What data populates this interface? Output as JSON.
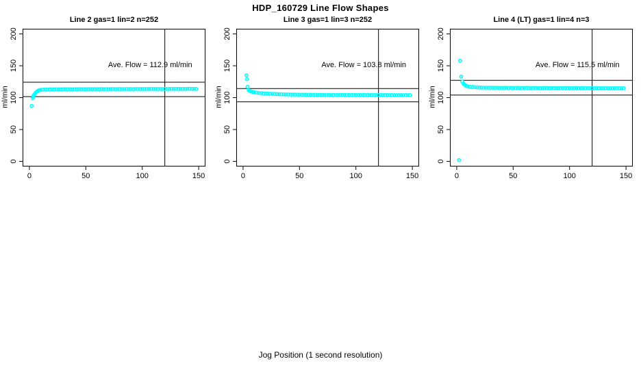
{
  "title": "HDP_160729  Line Flow Shapes",
  "xlabel": "Jog Position (1 second resolution)",
  "colors": {
    "point": "#00FFFF",
    "axis": "#000000",
    "background": "#ffffff"
  },
  "chart_data": [
    {
      "type": "scatter",
      "title": "Line 2 gas=1 lin=2 n=252",
      "annotation": "Ave. Flow =  112.9  ml/min",
      "ave_flow_ml_min": 112.9,
      "n": 252,
      "ylabel": "ml/min",
      "xlim": [
        -6,
        156
      ],
      "ylim": [
        -8,
        208
      ],
      "x_ticks": [
        0,
        50,
        100,
        150
      ],
      "y_ticks": [
        0,
        50,
        100,
        150,
        200
      ],
      "hlines": [
        124.2,
        101.6
      ],
      "vline": 120,
      "points": [
        [
          2,
          87
        ],
        [
          3,
          99
        ],
        [
          3.5,
          102
        ],
        [
          4,
          104
        ],
        [
          5,
          106.5
        ],
        [
          6,
          108.5
        ],
        [
          7,
          110
        ],
        [
          8,
          111
        ],
        [
          9,
          111.8
        ],
        [
          10,
          112.2
        ],
        [
          12,
          112.5
        ],
        [
          14,
          112.8
        ],
        [
          16,
          113
        ],
        [
          18,
          112.9
        ],
        [
          20,
          113.1
        ],
        [
          22,
          113
        ],
        [
          24,
          113.2
        ],
        [
          26,
          113.1
        ],
        [
          28,
          113
        ],
        [
          30,
          113.2
        ],
        [
          32,
          113.3
        ],
        [
          34,
          113.1
        ],
        [
          36,
          113.2
        ],
        [
          38,
          113
        ],
        [
          40,
          113.3
        ],
        [
          42,
          113.2
        ],
        [
          44,
          113.4
        ],
        [
          46,
          113.2
        ],
        [
          48,
          113.3
        ],
        [
          50,
          113.1
        ],
        [
          52,
          113.3
        ],
        [
          54,
          113.4
        ],
        [
          56,
          113.2
        ],
        [
          58,
          113.3
        ],
        [
          60,
          113.4
        ],
        [
          62,
          113.2
        ],
        [
          64,
          113.5
        ],
        [
          66,
          113.3
        ],
        [
          68,
          113.4
        ],
        [
          70,
          113.2
        ],
        [
          72,
          113.4
        ],
        [
          74,
          113.5
        ],
        [
          76,
          113.3
        ],
        [
          78,
          113.4
        ],
        [
          80,
          113.5
        ],
        [
          82,
          113.3
        ],
        [
          84,
          113.4
        ],
        [
          86,
          113.6
        ],
        [
          88,
          113.4
        ],
        [
          90,
          113.5
        ],
        [
          92,
          113.3
        ],
        [
          94,
          113.5
        ],
        [
          96,
          113.6
        ],
        [
          98,
          113.4
        ],
        [
          100,
          113.5
        ],
        [
          102,
          113.4
        ],
        [
          104,
          113.6
        ],
        [
          106,
          113.5
        ],
        [
          108,
          113.7
        ],
        [
          110,
          113.5
        ],
        [
          112,
          113.6
        ],
        [
          114,
          113.4
        ],
        [
          116,
          113.6
        ],
        [
          118,
          113.5
        ],
        [
          120,
          113.7
        ],
        [
          122,
          113.5
        ],
        [
          124,
          113.6
        ],
        [
          126,
          113.8
        ],
        [
          128,
          113.6
        ],
        [
          130,
          113.7
        ],
        [
          132,
          113.5
        ],
        [
          134,
          113.7
        ],
        [
          136,
          113.8
        ],
        [
          138,
          113.6
        ],
        [
          140,
          113.7
        ],
        [
          142,
          113.9
        ],
        [
          144,
          113.7
        ],
        [
          146,
          113.8
        ],
        [
          148,
          113.6
        ]
      ]
    },
    {
      "type": "scatter",
      "title": "Line 3 gas=1 lin=3 n=252",
      "annotation": "Ave. Flow =  103.8  ml/min",
      "ave_flow_ml_min": 103.8,
      "n": 252,
      "ylabel": "ml/min",
      "xlim": [
        -6,
        156
      ],
      "ylim": [
        -8,
        208
      ],
      "x_ticks": [
        0,
        50,
        100,
        150
      ],
      "y_ticks": [
        0,
        50,
        100,
        150,
        200
      ],
      "hlines": [
        114.2,
        93.4
      ],
      "vline": 120,
      "points": [
        [
          3,
          135
        ],
        [
          3.5,
          129
        ],
        [
          4,
          117
        ],
        [
          5,
          111.5
        ],
        [
          6,
          110.5
        ],
        [
          7,
          109.8
        ],
        [
          8,
          109.2
        ],
        [
          9,
          108.8
        ],
        [
          10,
          108.4
        ],
        [
          12,
          107.8
        ],
        [
          14,
          107.4
        ],
        [
          16,
          107
        ],
        [
          18,
          106.7
        ],
        [
          20,
          106.5
        ],
        [
          22,
          106.3
        ],
        [
          24,
          106.1
        ],
        [
          26,
          105.9
        ],
        [
          28,
          105.7
        ],
        [
          30,
          105.5
        ],
        [
          32,
          105.4
        ],
        [
          34,
          105.2
        ],
        [
          36,
          105.1
        ],
        [
          38,
          105
        ],
        [
          40,
          104.9
        ],
        [
          42,
          104.8
        ],
        [
          44,
          104.8
        ],
        [
          46,
          104.7
        ],
        [
          48,
          104.7
        ],
        [
          50,
          104.6
        ],
        [
          52,
          104.6
        ],
        [
          54,
          104.5
        ],
        [
          56,
          104.5
        ],
        [
          58,
          104.5
        ],
        [
          60,
          104.4
        ],
        [
          62,
          104.4
        ],
        [
          64,
          104.4
        ],
        [
          66,
          104.3
        ],
        [
          68,
          104.4
        ],
        [
          70,
          104.3
        ],
        [
          72,
          104.3
        ],
        [
          74,
          104.3
        ],
        [
          76,
          104.2
        ],
        [
          78,
          104.3
        ],
        [
          80,
          104.2
        ],
        [
          82,
          104.3
        ],
        [
          84,
          104.2
        ],
        [
          86,
          104.2
        ],
        [
          88,
          104.3
        ],
        [
          90,
          104.2
        ],
        [
          92,
          104.2
        ],
        [
          94,
          104.1
        ],
        [
          96,
          104.2
        ],
        [
          98,
          104.1
        ],
        [
          100,
          104.2
        ],
        [
          102,
          104.1
        ],
        [
          104,
          104.1
        ],
        [
          106,
          104.2
        ],
        [
          108,
          104.1
        ],
        [
          110,
          104.1
        ],
        [
          112,
          104
        ],
        [
          114,
          104.1
        ],
        [
          116,
          104
        ],
        [
          118,
          104.1
        ],
        [
          120,
          104
        ],
        [
          122,
          104.1
        ],
        [
          124,
          104
        ],
        [
          126,
          104
        ],
        [
          128,
          104.1
        ],
        [
          130,
          104
        ],
        [
          132,
          104
        ],
        [
          134,
          103.9
        ],
        [
          136,
          104
        ],
        [
          138,
          103.9
        ],
        [
          140,
          104
        ],
        [
          142,
          103.9
        ],
        [
          144,
          104
        ],
        [
          146,
          103.9
        ],
        [
          148,
          104
        ]
      ]
    },
    {
      "type": "scatter",
      "title": "Line 4 (LT) gas=1 lin=4 n=3",
      "annotation": "Ave. Flow =  115.5  ml/min",
      "ave_flow_ml_min": 115.5,
      "n": 3,
      "ylabel": "ml/min",
      "xlim": [
        -6,
        156
      ],
      "ylim": [
        -8,
        208
      ],
      "x_ticks": [
        0,
        50,
        100,
        150
      ],
      "y_ticks": [
        0,
        50,
        100,
        150,
        200
      ],
      "hlines": [
        127.1,
        104.0
      ],
      "vline": 120,
      "points": [
        [
          2,
          2
        ],
        [
          3,
          158
        ],
        [
          4,
          133
        ],
        [
          5,
          125
        ],
        [
          6,
          122
        ],
        [
          7,
          120.5
        ],
        [
          8,
          119
        ],
        [
          9,
          118.2
        ],
        [
          10,
          117.6
        ],
        [
          12,
          117
        ],
        [
          14,
          116.6
        ],
        [
          16,
          116.3
        ],
        [
          18,
          116.1
        ],
        [
          20,
          115.9
        ],
        [
          22,
          115.8
        ],
        [
          24,
          115.7
        ],
        [
          26,
          115.6
        ],
        [
          28,
          115.5
        ],
        [
          30,
          115.5
        ],
        [
          32,
          115.6
        ],
        [
          34,
          115.4
        ],
        [
          36,
          115.5
        ],
        [
          38,
          115.3
        ],
        [
          40,
          115.4
        ],
        [
          42,
          115.3
        ],
        [
          44,
          115.5
        ],
        [
          46,
          115.2
        ],
        [
          48,
          115.4
        ],
        [
          50,
          115.3
        ],
        [
          52,
          115.2
        ],
        [
          54,
          115.4
        ],
        [
          56,
          115.1
        ],
        [
          58,
          115.3
        ],
        [
          60,
          115.2
        ],
        [
          62,
          115.4
        ],
        [
          64,
          115.1
        ],
        [
          66,
          115.2
        ],
        [
          68,
          115.3
        ],
        [
          70,
          115.1
        ],
        [
          72,
          115.2
        ],
        [
          74,
          115
        ],
        [
          76,
          115.2
        ],
        [
          78,
          115.1
        ],
        [
          80,
          115.3
        ],
        [
          82,
          115
        ],
        [
          84,
          115.1
        ],
        [
          86,
          114.9
        ],
        [
          88,
          115.1
        ],
        [
          90,
          115
        ],
        [
          92,
          115.2
        ],
        [
          94,
          114.9
        ],
        [
          96,
          115
        ],
        [
          98,
          115.1
        ],
        [
          100,
          114.8
        ],
        [
          102,
          115
        ],
        [
          104,
          114.9
        ],
        [
          106,
          115.1
        ],
        [
          108,
          114.8
        ],
        [
          110,
          114.9
        ],
        [
          112,
          115
        ],
        [
          114,
          114.8
        ],
        [
          116,
          114.9
        ],
        [
          118,
          114.7
        ],
        [
          120,
          114.9
        ],
        [
          122,
          114.8
        ],
        [
          124,
          115
        ],
        [
          126,
          114.7
        ],
        [
          128,
          114.8
        ],
        [
          130,
          114.9
        ],
        [
          132,
          114.7
        ],
        [
          134,
          114.8
        ],
        [
          136,
          114.6
        ],
        [
          138,
          114.8
        ],
        [
          140,
          114.7
        ],
        [
          142,
          114.9
        ],
        [
          144,
          114.6
        ],
        [
          146,
          114.8
        ],
        [
          148,
          114.7
        ]
      ]
    }
  ]
}
